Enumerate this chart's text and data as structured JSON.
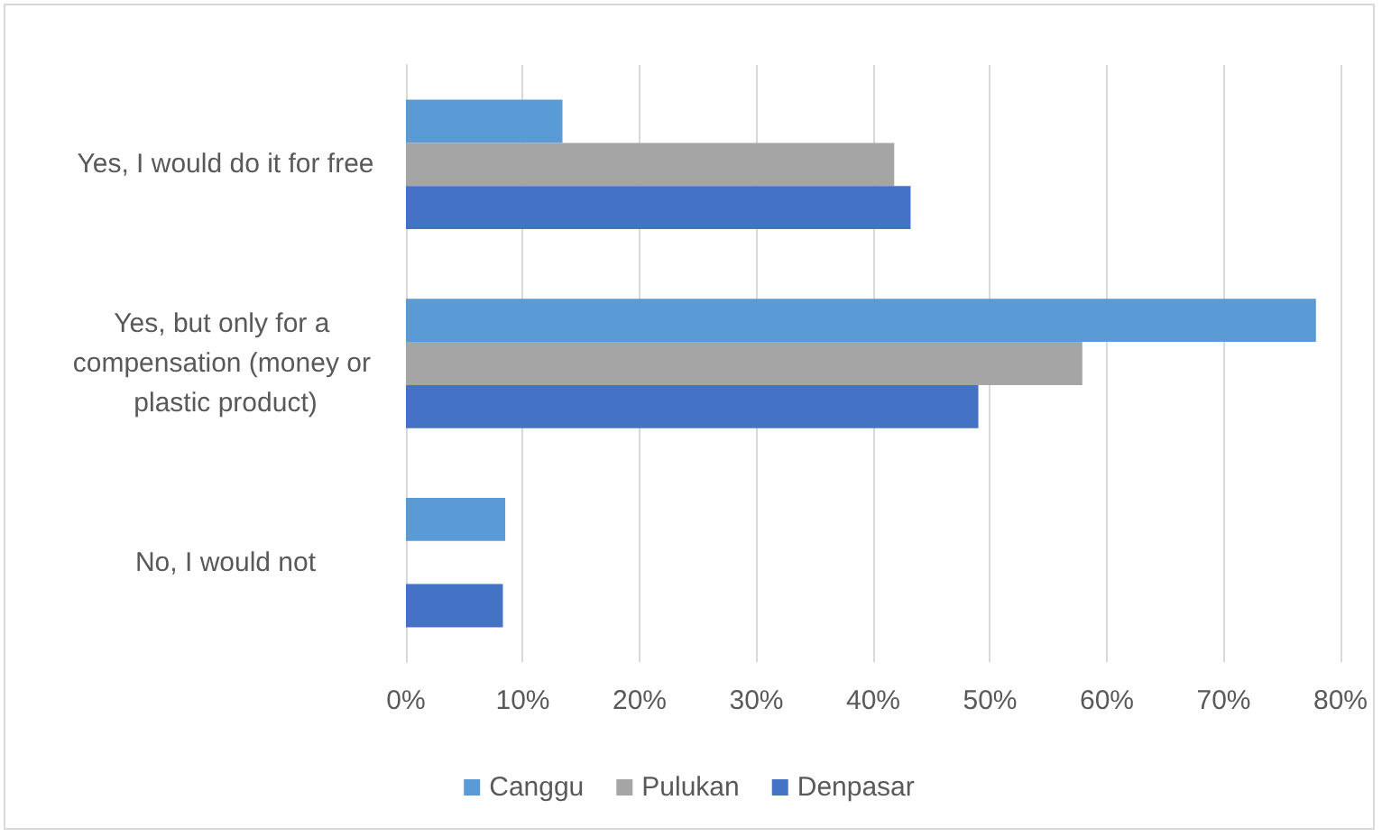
{
  "chart_data": {
    "type": "bar",
    "orientation": "horizontal",
    "categories": [
      "Yes, I would do it for free",
      "Yes, but only for a compensation (money or plastic product)",
      "No, I would not"
    ],
    "series": [
      {
        "name": "Canggu",
        "color": "#5b9bd5",
        "values": [
          13.4,
          77.9,
          8.5
        ]
      },
      {
        "name": "Pulukan",
        "color": "#a5a5a5",
        "values": [
          41.8,
          57.9,
          0
        ]
      },
      {
        "name": "Denpasar",
        "color": "#4472c4",
        "values": [
          43.2,
          49.0,
          8.3
        ]
      }
    ],
    "xlim": [
      0,
      80
    ],
    "xticks": [
      {
        "value": 0,
        "label": "0%"
      },
      {
        "value": 10,
        "label": "10%"
      },
      {
        "value": 20,
        "label": "20%"
      },
      {
        "value": 30,
        "label": "30%"
      },
      {
        "value": 40,
        "label": "40%"
      },
      {
        "value": 50,
        "label": "50%"
      },
      {
        "value": 60,
        "label": "60%"
      },
      {
        "value": 70,
        "label": "70%"
      },
      {
        "value": 80,
        "label": "80%"
      }
    ],
    "grid": "x",
    "legend": "bottom"
  }
}
